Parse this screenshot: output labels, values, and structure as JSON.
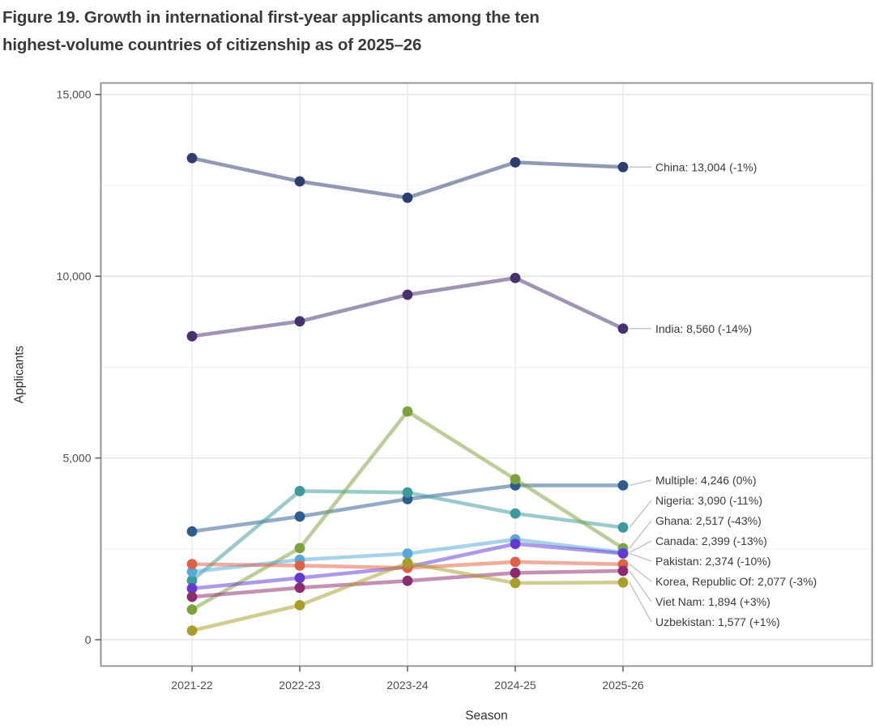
{
  "figure": {
    "title_line1": "Figure 19. Growth in international first-year applicants among the ten",
    "title_line2": "highest-volume countries of citizenship as of 2025–26"
  },
  "chart_data": {
    "type": "line",
    "title": "Figure 19. Growth in international first-year applicants among the ten highest-volume countries of citizenship as of 2025–26",
    "xlabel": "Season",
    "ylabel": "Applicants",
    "categories": [
      "2021-22",
      "2022-23",
      "2023-24",
      "2024-25",
      "2025-26"
    ],
    "ylim": [
      0,
      15000
    ],
    "yticks": [
      {
        "value": 0,
        "label": "0"
      },
      {
        "value": 5000,
        "label": "5,000"
      },
      {
        "value": 10000,
        "label": "10,000"
      },
      {
        "value": 15000,
        "label": "15,000"
      }
    ],
    "y_minor_ticks": [
      2500,
      7500,
      12500
    ],
    "grid": true,
    "legend_position": "right-callouts",
    "line_opacity": 0.52,
    "colors": {
      "gridline_major": "#e4e4e4",
      "gridline_minor": "#f0f0f0",
      "gridline_vertical": "#e8e8e8",
      "panel_border": "#8c8c8c",
      "tick": "#5a5a5a",
      "tick_label": "#4d4d4d",
      "axis_title": "#2f2f2f",
      "callout_text": "#3a3a3a",
      "callout_line": "#bfbfbf"
    },
    "series": [
      {
        "name": "China",
        "color": "#2A3E72",
        "values": [
          13250,
          12610,
          12160,
          13135,
          13004
        ],
        "final": 13004,
        "callout": "China: 13,004 (-1%)"
      },
      {
        "name": "India",
        "color": "#473170",
        "values": [
          8350,
          8760,
          9490,
          9953,
          8560
        ],
        "final": 8560,
        "callout": "India: 8,560 (-14%)"
      },
      {
        "name": "Multiple",
        "color": "#2E5C8C",
        "values": [
          2980,
          3390,
          3870,
          4246,
          4246
        ],
        "final": 4246,
        "callout": "Multiple: 4,246 (0%)"
      },
      {
        "name": "Nigeria",
        "color": "#3D9A9C",
        "values": [
          1630,
          4090,
          4050,
          3472,
          3090
        ],
        "final": 3090,
        "callout": "Nigeria: 3,090 (-11%)"
      },
      {
        "name": "Ghana",
        "color": "#7CA23D",
        "values": [
          830,
          2520,
          6280,
          4416,
          2517
        ],
        "final": 2517,
        "callout": "Ghana: 2,517 (-43%)"
      },
      {
        "name": "Canada",
        "color": "#55A9D6",
        "values": [
          1870,
          2200,
          2370,
          2758,
          2399
        ],
        "final": 2399,
        "callout": "Canada: 2,399 (-13%)"
      },
      {
        "name": "Pakistan",
        "color": "#6539CF",
        "values": [
          1410,
          1700,
          2000,
          2638,
          2374
        ],
        "final": 2374,
        "callout": "Pakistan: 2,374 (-10%)"
      },
      {
        "name": "Korea, Republic Of",
        "color": "#DD6246",
        "values": [
          2080,
          2040,
          1975,
          2141,
          2077
        ],
        "final": 2077,
        "callout": "Korea, Republic Of: 2,077 (-3%)"
      },
      {
        "name": "Viet Nam",
        "color": "#8D2B6F",
        "values": [
          1180,
          1430,
          1620,
          1839,
          1894
        ],
        "final": 1894,
        "callout": "Viet Nam: 1,894 (+3%)"
      },
      {
        "name": "Uzbekistan",
        "color": "#A99E2B",
        "values": [
          250,
          950,
          2110,
          1561,
          1577
        ],
        "final": 1577,
        "callout": "Uzbekistan: 1,577 (+1%)"
      }
    ]
  }
}
